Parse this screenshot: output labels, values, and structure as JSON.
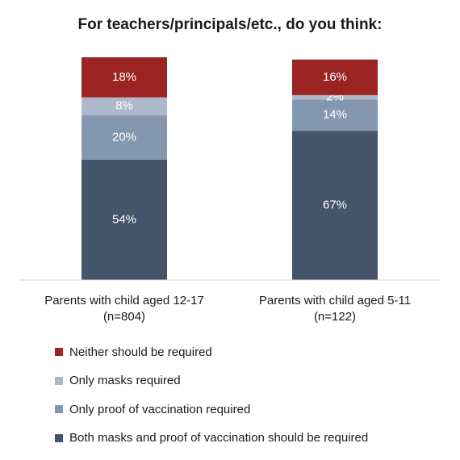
{
  "chart_data": {
    "type": "bar",
    "stacked": true,
    "title": "For teachers/principals/etc., do you think:",
    "xlabel": "",
    "ylabel": "",
    "ylim": [
      0,
      100
    ],
    "grid": false,
    "legend_position": "bottom",
    "categories": [
      [
        "Parents with child aged 12-17",
        "(n=804)"
      ],
      [
        "Parents with child aged 5-11",
        "(n=122)"
      ]
    ],
    "series": [
      {
        "name": "Both masks and proof of vaccination should be required",
        "values": [
          54,
          67
        ],
        "labels": [
          "54%",
          "67%"
        ],
        "color": "#44546a"
      },
      {
        "name": "Only proof of vaccination required",
        "values": [
          20,
          14
        ],
        "labels": [
          "20%",
          "14%"
        ],
        "color": "#8497b0"
      },
      {
        "name": "Only masks required",
        "values": [
          8,
          2
        ],
        "labels": [
          "8%",
          "2%"
        ],
        "color": "#adb9ca"
      },
      {
        "name": "Neither should be required",
        "values": [
          18,
          16
        ],
        "labels": [
          "18%",
          "16%"
        ],
        "color": "#9b2423"
      }
    ],
    "legend_order": [
      3,
      2,
      1,
      0
    ]
  }
}
